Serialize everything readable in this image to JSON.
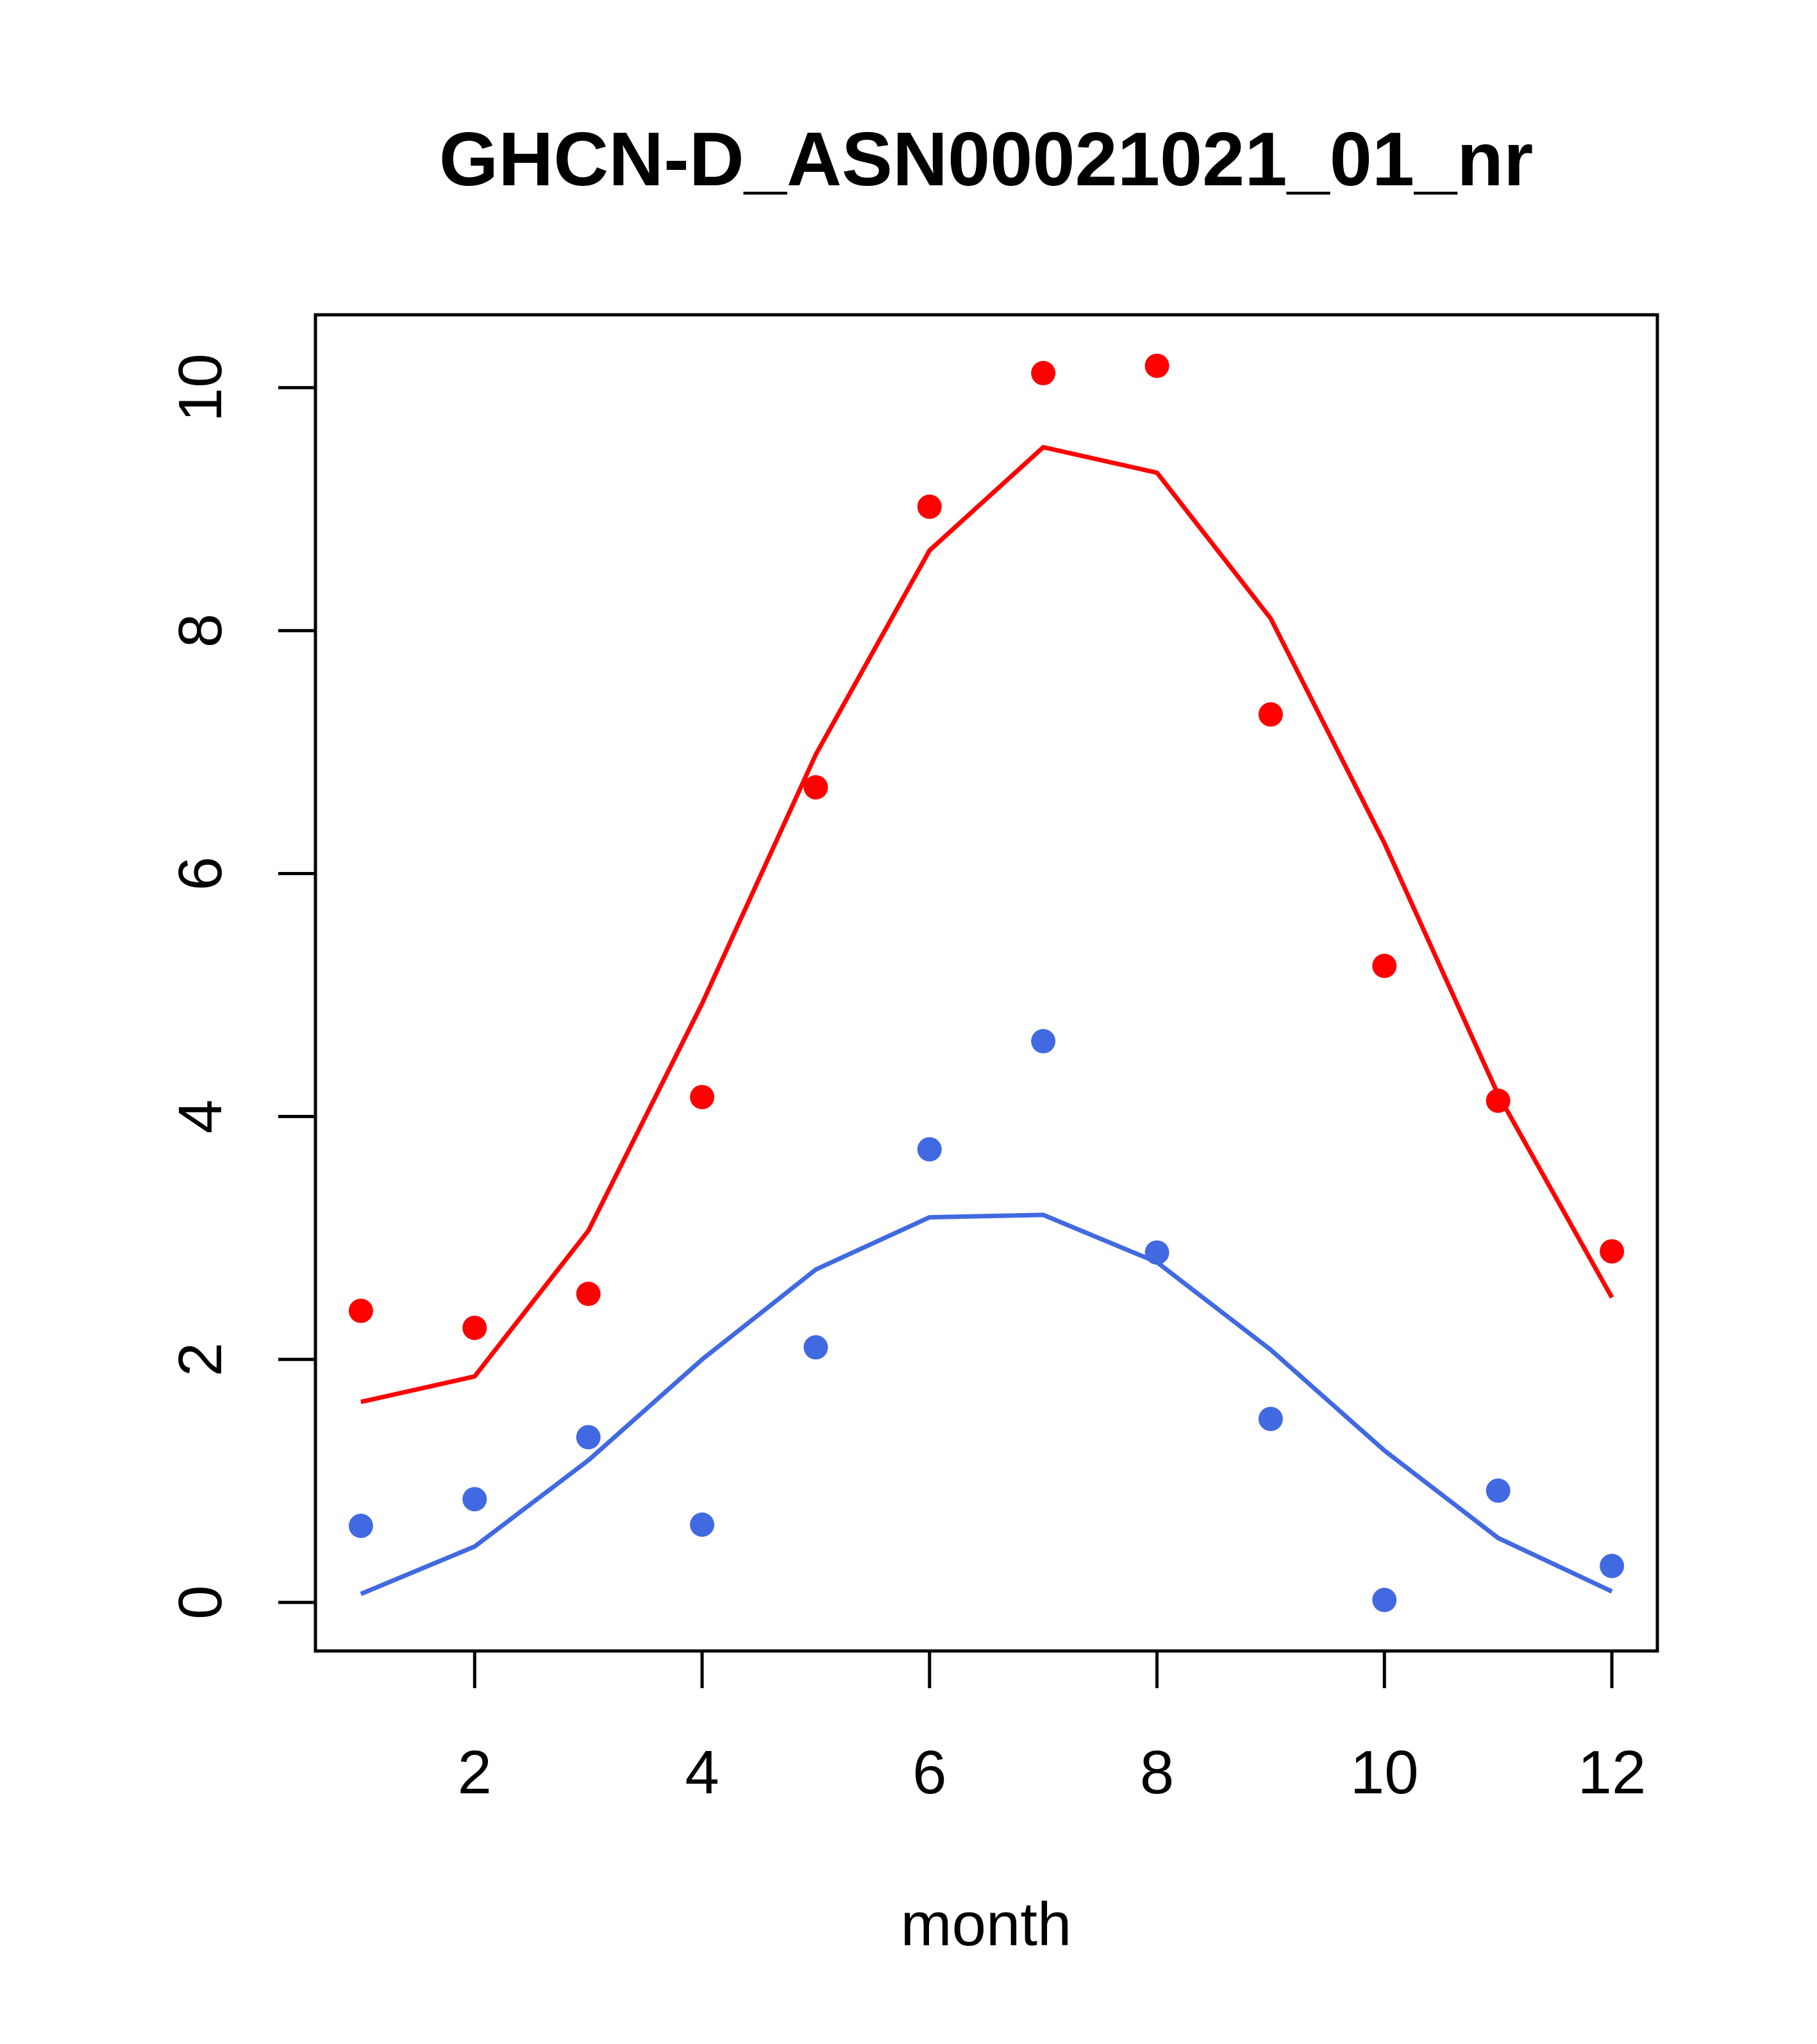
{
  "chart_data": {
    "type": "scatter",
    "title": "GHCN-D_ASN00021021_01_nr",
    "xlabel": "month",
    "ylabel": "",
    "xlim": [
      0.6,
      12.4
    ],
    "ylim": [
      -0.4,
      10.6
    ],
    "x_ticks": [
      2,
      4,
      6,
      8,
      10,
      12
    ],
    "y_ticks": [
      0,
      2,
      4,
      6,
      8,
      10
    ],
    "grid": false,
    "series": [
      {
        "color": "#FF0000",
        "points_x": [
          1,
          2,
          3,
          4,
          5,
          6,
          7,
          8,
          9,
          10,
          11,
          12
        ],
        "points_y": [
          2.4,
          2.26,
          2.54,
          4.16,
          6.71,
          9.02,
          10.12,
          10.18,
          7.31,
          5.24,
          4.13,
          2.89
        ],
        "line_x": [
          1,
          2,
          3,
          4,
          5,
          6,
          7,
          8,
          9,
          10,
          11,
          12
        ],
        "line_y": [
          1.65,
          1.86,
          3.06,
          4.93,
          6.98,
          8.66,
          9.51,
          9.3,
          8.1,
          6.25,
          4.18,
          2.51
        ]
      },
      {
        "color": "#4169E1",
        "points_x": [
          1,
          2,
          3,
          4,
          5,
          6,
          7,
          8,
          9,
          10,
          11,
          12
        ],
        "points_y": [
          0.63,
          0.85,
          1.36,
          0.64,
          2.1,
          3.73,
          4.62,
          2.88,
          1.51,
          0.02,
          0.92,
          0.3
        ],
        "line_x": [
          1,
          2,
          3,
          4,
          5,
          6,
          7,
          8,
          9,
          10,
          11,
          12
        ],
        "line_y": [
          0.07,
          0.46,
          1.17,
          2.0,
          2.74,
          3.17,
          3.19,
          2.8,
          2.08,
          1.25,
          0.53,
          0.09
        ]
      }
    ]
  }
}
